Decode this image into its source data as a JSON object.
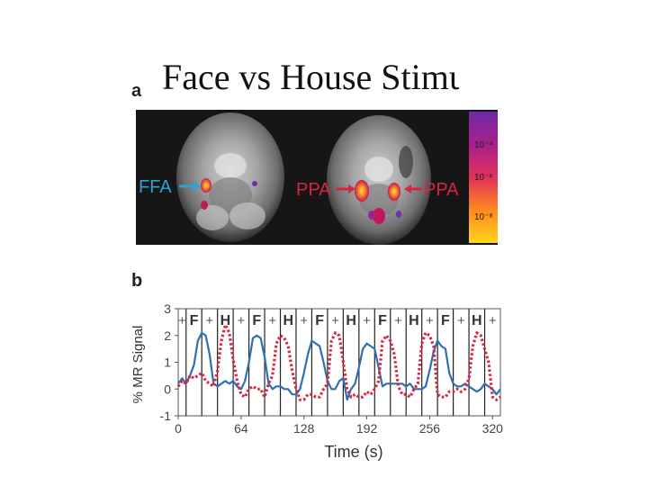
{
  "slide": {
    "title": "Face vs House Stimuli"
  },
  "figure": {
    "panel_a": {
      "label": "a",
      "left_region_label": "FFA",
      "right_region_label_1": "PPA",
      "right_region_label_2": "PPA",
      "colorbar_ticks": [
        "10⁻⁴",
        "10⁻⁶",
        "10⁻⁸"
      ],
      "colors": {
        "ffa_label": "#2aa3dc",
        "ppa_label": "#d8243c"
      }
    },
    "panel_b": {
      "label": "b"
    }
  },
  "chart_data": {
    "type": "line",
    "xlabel": "Time (s)",
    "ylabel": "% MR Signal",
    "xlim": [
      0,
      328
    ],
    "ylim": [
      -1,
      3
    ],
    "xticks": [
      0,
      64,
      128,
      192,
      256,
      320
    ],
    "yticks": [
      -1,
      0,
      1,
      2,
      3
    ],
    "block_boundaries": [
      8,
      24,
      40,
      56,
      72,
      88,
      104,
      120,
      136,
      152,
      168,
      184,
      200,
      216,
      232,
      248,
      264,
      280,
      296,
      312
    ],
    "block_labels": [
      "+",
      "F",
      "+",
      "H",
      "+",
      "F",
      "+",
      "H",
      "+",
      "F",
      "+",
      "H",
      "+",
      "F",
      "+",
      "H",
      "+",
      "F",
      "+",
      "H",
      "+"
    ],
    "series": [
      {
        "name": "FFA",
        "color": "#2f6fb4",
        "style": "solid",
        "x": [
          0,
          4,
          8,
          12,
          16,
          20,
          24,
          28,
          32,
          36,
          40,
          44,
          48,
          52,
          56,
          60,
          64,
          68,
          72,
          76,
          80,
          84,
          88,
          92,
          96,
          100,
          104,
          108,
          112,
          116,
          120,
          124,
          128,
          132,
          136,
          140,
          144,
          148,
          152,
          156,
          160,
          164,
          168,
          172,
          176,
          180,
          184,
          188,
          192,
          196,
          200,
          204,
          208,
          212,
          216,
          220,
          224,
          228,
          232,
          236,
          240,
          244,
          248,
          252,
          256,
          260,
          264,
          268,
          272,
          276,
          280,
          284,
          288,
          292,
          296,
          300,
          304,
          308,
          312,
          316,
          320,
          324,
          328
        ],
        "values": [
          0.2,
          0.4,
          0.2,
          0.5,
          0.9,
          1.8,
          2.1,
          2.0,
          1.3,
          0.2,
          0.1,
          0.2,
          0.3,
          0.2,
          0.3,
          0.1,
          0.0,
          0.3,
          1.0,
          1.9,
          2.0,
          1.9,
          1.2,
          0.2,
          0.0,
          0.1,
          0.1,
          0.0,
          0.0,
          -0.2,
          -0.2,
          0.0,
          0.6,
          1.3,
          1.8,
          1.7,
          1.6,
          1.0,
          0.3,
          0.0,
          0.0,
          0.3,
          0.4,
          -0.4,
          0.0,
          0.2,
          0.8,
          1.5,
          1.7,
          1.6,
          1.5,
          0.8,
          0.1,
          0.2,
          0.2,
          0.2,
          0.2,
          0.2,
          0.1,
          0.2,
          0.0,
          0.0,
          0.0,
          0.1,
          0.7,
          1.4,
          1.8,
          1.6,
          1.5,
          0.6,
          0.2,
          0.1,
          0.1,
          0.2,
          0.1,
          0.0,
          -0.1,
          0.0,
          0.2,
          0.1,
          0.0,
          -0.2,
          0.0
        ]
      },
      {
        "name": "PPA",
        "color": "#d8243c",
        "style": "dotted",
        "x": [
          0,
          4,
          8,
          12,
          16,
          20,
          24,
          28,
          32,
          36,
          40,
          44,
          48,
          52,
          56,
          60,
          64,
          68,
          72,
          76,
          80,
          84,
          88,
          92,
          96,
          100,
          104,
          108,
          112,
          116,
          120,
          124,
          128,
          132,
          136,
          140,
          144,
          148,
          152,
          156,
          160,
          164,
          168,
          172,
          176,
          180,
          184,
          188,
          192,
          196,
          200,
          204,
          208,
          212,
          216,
          220,
          224,
          228,
          232,
          236,
          240,
          244,
          248,
          252,
          256,
          260,
          264,
          268,
          272,
          276,
          280,
          284,
          288,
          292,
          296,
          300,
          304,
          308,
          312,
          316,
          320,
          324,
          328
        ],
        "values": [
          0.1,
          0.3,
          0.2,
          0.5,
          0.4,
          0.5,
          0.6,
          0.3,
          0.2,
          0.1,
          0.7,
          1.8,
          2.4,
          2.1,
          1.1,
          0.3,
          -0.2,
          -0.3,
          0.0,
          0.1,
          0.0,
          0.0,
          -0.3,
          0.2,
          0.5,
          1.7,
          2.0,
          1.9,
          1.6,
          0.7,
          0.0,
          -0.4,
          -0.4,
          -0.2,
          -0.2,
          -0.3,
          -0.3,
          0.0,
          0.2,
          1.8,
          2.1,
          2.0,
          1.0,
          0.0,
          -0.3,
          -0.2,
          -0.3,
          -0.3,
          -0.1,
          -0.2,
          0.0,
          0.3,
          1.8,
          2.0,
          1.8,
          1.3,
          0.1,
          -0.2,
          -0.2,
          -0.3,
          0.0,
          0.2,
          1.7,
          2.1,
          2.0,
          1.6,
          -0.2,
          -0.3,
          -0.3,
          -0.1,
          -0.1,
          0.0,
          -0.1,
          0.0,
          0.4,
          1.6,
          2.1,
          2.0,
          1.5,
          1.0,
          -0.3,
          -0.4,
          -0.3
        ]
      }
    ]
  }
}
